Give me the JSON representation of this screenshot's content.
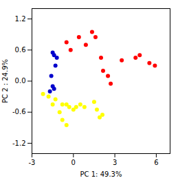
{
  "chart_data": {
    "type": "scatter",
    "xlabel": "PC 1: 49.3%",
    "ylabel": "PC 2 : 24.9%",
    "xlim": [
      -3,
      7
    ],
    "ylim": [
      -1.4,
      1.4
    ],
    "xticks": [
      -3,
      0,
      3,
      6
    ],
    "yticks": [
      -1.2,
      -0.6,
      {
        "value": 0,
        "label": "0.0"
      },
      0.6,
      1.2
    ],
    "grid": false,
    "series": [
      {
        "color": "#ff0000",
        "x": [
          -0.5,
          -0.2,
          0.4,
          0.9,
          1.35,
          1.6,
          2.0,
          2.15,
          2.5,
          2.7,
          3.5,
          4.5,
          4.8,
          5.5,
          5.9
        ],
        "values": [
          0.75,
          0.6,
          0.85,
          0.7,
          0.95,
          0.85,
          0.45,
          0.2,
          0.1,
          -0.05,
          0.4,
          0.45,
          0.5,
          0.35,
          0.3
        ]
      },
      {
        "color": "#0000cc",
        "x": [
          -1.5,
          -1.4,
          -1.2,
          -1.3,
          -1.6,
          -1.5,
          -1.7,
          -1.4
        ],
        "values": [
          0.55,
          0.5,
          0.45,
          0.3,
          0.1,
          -0.1,
          -0.2,
          -0.15
        ]
      },
      {
        "color": "#ffff00",
        "x": [
          -2.2,
          -1.8,
          -1.3,
          -1.5,
          -0.8,
          -0.5,
          -0.3,
          0.0,
          0.2,
          0.5,
          0.8,
          1.5,
          1.7,
          1.9,
          2.1,
          -1.0,
          -0.8,
          -0.5
        ],
        "values": [
          -0.25,
          -0.3,
          -0.35,
          -0.45,
          -0.45,
          -0.45,
          -0.5,
          -0.55,
          -0.5,
          -0.45,
          -0.5,
          -0.4,
          -0.55,
          -0.7,
          -0.65,
          -0.6,
          -0.75,
          -0.85
        ]
      }
    ]
  }
}
